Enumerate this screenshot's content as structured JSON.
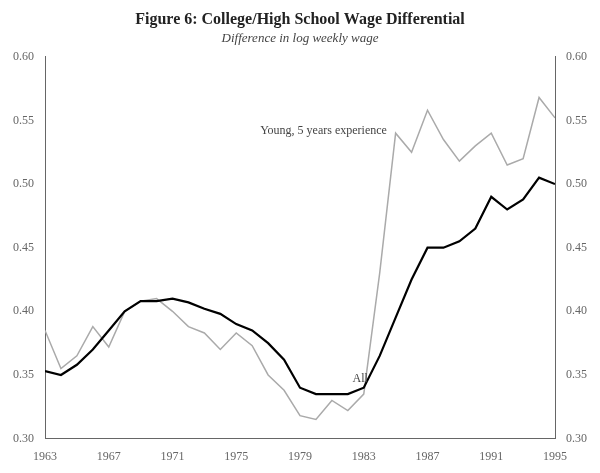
{
  "chart_data": {
    "type": "line",
    "title": "Figure 6: College/High School Wage Differential",
    "subtitle": "Difference in log weekly wage",
    "x": [
      1963,
      1964,
      1965,
      1966,
      1967,
      1968,
      1969,
      1970,
      1971,
      1972,
      1973,
      1974,
      1975,
      1976,
      1977,
      1978,
      1979,
      1980,
      1981,
      1982,
      1983,
      1984,
      1985,
      1986,
      1987,
      1988,
      1989,
      1990,
      1991,
      1992,
      1993,
      1994,
      1995
    ],
    "series": [
      {
        "color": "#aaaaaa",
        "values": [
          0.385,
          0.355,
          0.365,
          0.388,
          0.372,
          0.4,
          0.408,
          0.41,
          0.4,
          0.388,
          0.383,
          0.37,
          0.383,
          0.373,
          0.35,
          0.338,
          0.318,
          0.315,
          0.33,
          0.322,
          0.335,
          0.43,
          0.54,
          0.525,
          0.558,
          0.535,
          0.518,
          0.53,
          0.54,
          0.515,
          0.52,
          0.568,
          0.552
        ]
      },
      {
        "color": "#000000",
        "values": [
          0.353,
          0.35,
          0.358,
          0.37,
          0.385,
          0.4,
          0.408,
          0.408,
          0.41,
          0.407,
          0.402,
          0.398,
          0.39,
          0.385,
          0.375,
          0.362,
          0.34,
          0.335,
          0.335,
          0.335,
          0.34,
          0.365,
          0.395,
          0.425,
          0.45,
          0.45,
          0.455,
          0.465,
          0.49,
          0.48,
          0.488,
          0.505,
          0.5
        ]
      }
    ],
    "xlim": [
      1963,
      1995
    ],
    "xticks": [
      1963,
      1967,
      1971,
      1975,
      1979,
      1983,
      1987,
      1991,
      1995
    ],
    "ylim": [
      0.3,
      0.6
    ],
    "yticks": [
      {
        "value": 0.3,
        "label": "0.30"
      },
      0.35,
      {
        "value": 0.4,
        "label": "0.40"
      },
      0.45,
      {
        "value": 0.5,
        "label": "0.50"
      },
      0.55,
      {
        "value": 0.6,
        "label": "0.60"
      }
    ],
    "y2lim": [
      0.3,
      0.6
    ],
    "y2ticks": [
      {
        "value": 0.3,
        "label": "0.30"
      },
      0.35,
      {
        "value": 0.4,
        "label": "0.40"
      },
      0.45,
      {
        "value": 0.5,
        "label": "0.50"
      },
      0.55,
      {
        "value": 0.6,
        "label": "0.60"
      }
    ],
    "grid": false,
    "annotations": [
      {
        "text": "Young, 5 years experience",
        "x": 1976.5,
        "y": 0.537
      },
      {
        "text": "All",
        "x": 1982.3,
        "y": 0.352
      }
    ]
  }
}
